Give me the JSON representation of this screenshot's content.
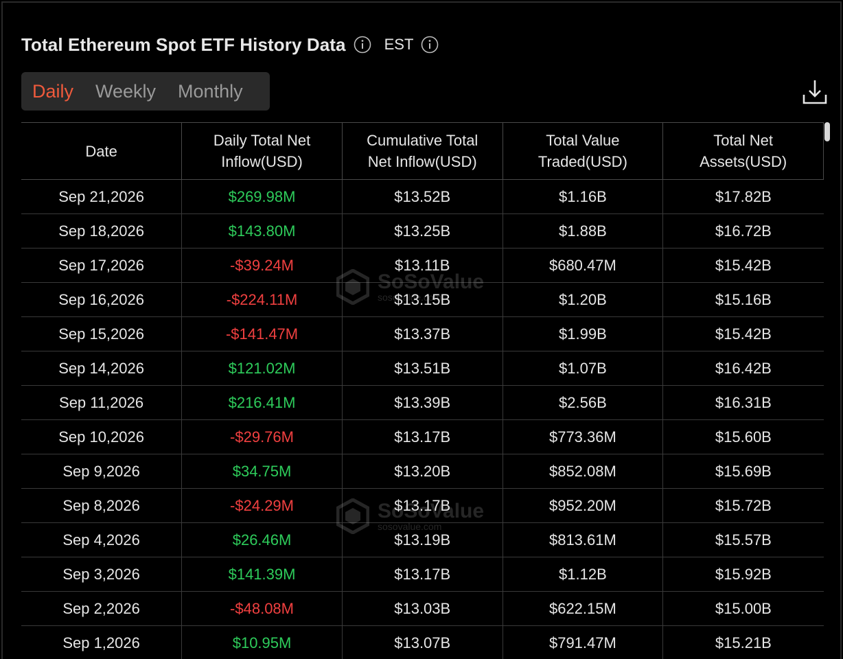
{
  "header": {
    "title": "Total Ethereum Spot ETF History Data",
    "timezone": "EST"
  },
  "tabs": [
    {
      "label": "Daily",
      "active": true
    },
    {
      "label": "Weekly",
      "active": false
    },
    {
      "label": "Monthly",
      "active": false
    }
  ],
  "table": {
    "headers": [
      "Date",
      "Daily Total Net Inflow(USD)",
      "Cumulative Total Net Inflow(USD)",
      "Total Value Traded(USD)",
      "Total Net Assets(USD)"
    ],
    "header_lines": [
      [
        "Date"
      ],
      [
        "Daily Total Net",
        "Inflow(USD)"
      ],
      [
        "Cumulative Total",
        "Net Inflow(USD)"
      ],
      [
        "Total Value",
        "Traded(USD)"
      ],
      [
        "Total Net",
        "Assets(USD)"
      ]
    ],
    "rows": [
      [
        "Sep 21,2026",
        "$269.98M",
        "$13.52B",
        "$1.16B",
        "$17.82B"
      ],
      [
        "Sep 18,2026",
        "$143.80M",
        "$13.25B",
        "$1.88B",
        "$16.72B"
      ],
      [
        "Sep 17,2026",
        "-$39.24M",
        "$13.11B",
        "$680.47M",
        "$15.42B"
      ],
      [
        "Sep 16,2026",
        "-$224.11M",
        "$13.15B",
        "$1.20B",
        "$15.16B"
      ],
      [
        "Sep 15,2026",
        "-$141.47M",
        "$13.37B",
        "$1.99B",
        "$15.42B"
      ],
      [
        "Sep 14,2026",
        "$121.02M",
        "$13.51B",
        "$1.07B",
        "$16.42B"
      ],
      [
        "Sep 11,2026",
        "$216.41M",
        "$13.39B",
        "$2.56B",
        "$16.31B"
      ],
      [
        "Sep 10,2026",
        "-$29.76M",
        "$13.17B",
        "$773.36M",
        "$15.60B"
      ],
      [
        "Sep 9,2026",
        "$34.75M",
        "$13.20B",
        "$852.08M",
        "$15.69B"
      ],
      [
        "Sep 8,2026",
        "-$24.29M",
        "$13.17B",
        "$952.20M",
        "$15.72B"
      ],
      [
        "Sep 4,2026",
        "$26.46M",
        "$13.19B",
        "$813.61M",
        "$15.57B"
      ],
      [
        "Sep 3,2026",
        "$141.39M",
        "$13.17B",
        "$1.12B",
        "$15.92B"
      ],
      [
        "Sep 2,2026",
        "-$48.08M",
        "$13.03B",
        "$622.15M",
        "$15.00B"
      ],
      [
        "Sep 1,2026",
        "$10.95M",
        "$13.07B",
        "$791.47M",
        "$15.21B"
      ]
    ]
  },
  "watermark": {
    "brand": "SoSoValue",
    "domain": "sosovalue.com"
  },
  "colors": {
    "accent": "#ef5a3c",
    "positive": "#2ecc5b",
    "negative": "#f04040",
    "background": "#000000"
  },
  "icons": {
    "title_info": "info-icon",
    "timezone_info": "info-icon",
    "download": "download-icon"
  }
}
